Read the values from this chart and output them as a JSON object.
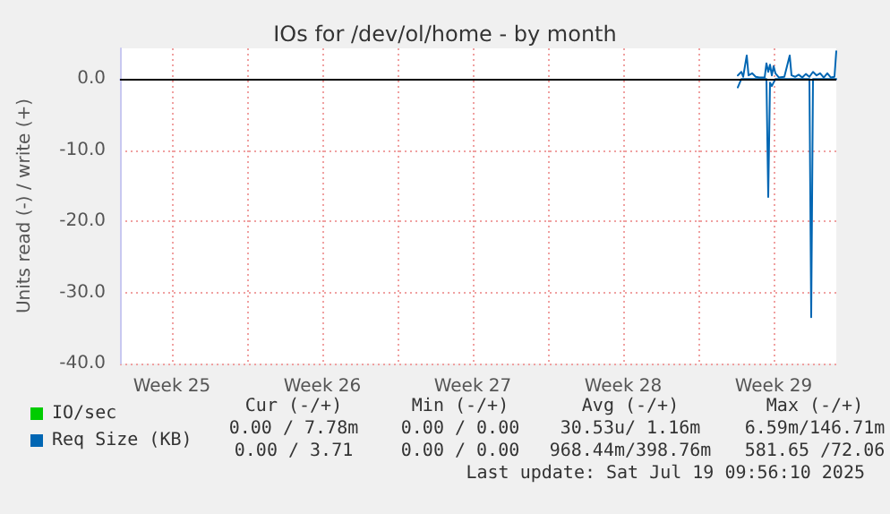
{
  "chart_data": {
    "type": "line",
    "title": "IOs for /dev/ol/home - by month",
    "ylabel": "Units read (-) / write (+)",
    "xlim": [
      "2025-06-17T02:00",
      "2025-07-20T10:00"
    ],
    "xticks": [
      {
        "value": "2025-06-19T12:00",
        "label": "Week 25"
      },
      {
        "value": "2025-06-23T00:00",
        "label": null
      },
      {
        "value": "2025-06-26T12:00",
        "label": "Week 26"
      },
      {
        "value": "2025-06-30T00:00",
        "label": null
      },
      {
        "value": "2025-07-03T12:00",
        "label": "Week 27"
      },
      {
        "value": "2025-07-07T00:00",
        "label": null
      },
      {
        "value": "2025-07-10T12:00",
        "label": "Week 28"
      },
      {
        "value": "2025-07-14T00:00",
        "label": null
      },
      {
        "value": "2025-07-17T12:00",
        "label": "Week 29"
      }
    ],
    "ylim": [
      -40,
      4.3
    ],
    "yticks": [
      {
        "value": -40,
        "label": "-40.0"
      },
      {
        "value": -30,
        "label": "-30.0"
      },
      {
        "value": -20,
        "label": "-20.0"
      },
      {
        "value": -10,
        "label": "-10.0"
      },
      {
        "value": 0,
        "label": "0.0"
      }
    ],
    "grid": true,
    "legend": "bottom left",
    "marker": "none",
    "line_style": "solid",
    "ref_lines": [
      {
        "axis": "y",
        "value": 0,
        "color": "#000000"
      }
    ],
    "series": [
      {
        "name": "IO/sec",
        "color": "#00cc00"
      },
      {
        "name": "Req Size (KB)",
        "color": "#0066b3",
        "x": [
          "2025-07-15T20:00",
          "2025-07-16T00:00",
          "2025-07-17T04:00",
          "2025-07-17T06:00",
          "2025-07-17T08:00",
          "2025-07-17T10:00",
          "2025-07-17T14:00",
          "2025-07-19T04:00",
          "2025-07-19T06:00",
          "2025-07-19T08:00",
          "2025-07-20T10:00"
        ],
        "values": [
          -1.2,
          0,
          0,
          -16.6,
          -0.5,
          -1,
          0,
          0,
          -33.5,
          0,
          0
        ]
      },
      {
        "color": "#0066b3",
        "x": [
          "2025-07-15T20:00",
          "2025-07-16T00:00",
          "2025-07-16T02:00",
          "2025-07-16T06:00",
          "2025-07-16T08:00",
          "2025-07-16T12:00",
          "2025-07-16T16:00",
          "2025-07-16T20:00",
          "2025-07-17T02:00",
          "2025-07-17T04:00",
          "2025-07-17T06:00",
          "2025-07-17T08:00",
          "2025-07-17T10:00",
          "2025-07-17T12:00",
          "2025-07-17T14:00",
          "2025-07-17T18:00",
          "2025-07-18T00:00",
          "2025-07-18T06:00",
          "2025-07-18T08:00",
          "2025-07-18T12:00",
          "2025-07-18T16:00",
          "2025-07-18T20:00",
          "2025-07-19T00:00",
          "2025-07-19T04:00",
          "2025-07-19T08:00",
          "2025-07-19T12:00",
          "2025-07-19T16:00",
          "2025-07-19T20:00",
          "2025-07-20T00:00",
          "2025-07-20T04:00",
          "2025-07-20T08:00",
          "2025-07-20T10:00"
        ],
        "values": [
          0.5,
          1.0,
          0.3,
          3.3,
          0.5,
          0.8,
          0.3,
          0.2,
          0.2,
          2.2,
          1.0,
          2.0,
          0.5,
          1.8,
          0.8,
          0.2,
          0.3,
          3.3,
          0.5,
          0.3,
          0.6,
          0.2,
          0.7,
          0.3,
          1.0,
          0.5,
          0.8,
          0.2,
          0.8,
          0.2,
          0.3,
          3.9
        ]
      }
    ],
    "annotations": [
      "Cur (-/+)",
      "Min (-/+)",
      "Avg (-/+)",
      "Max (-/+)",
      "0.00 / 7.78m",
      "0.00 / 0.00",
      "30.53u/ 1.16m",
      "6.59m/146.71m",
      "0.00 / 3.71",
      "0.00 / 0.00",
      "968.44m/398.76m",
      "581.65 /72.06",
      "Last update: Sat Jul 19 09:56:10 2025"
    ]
  }
}
